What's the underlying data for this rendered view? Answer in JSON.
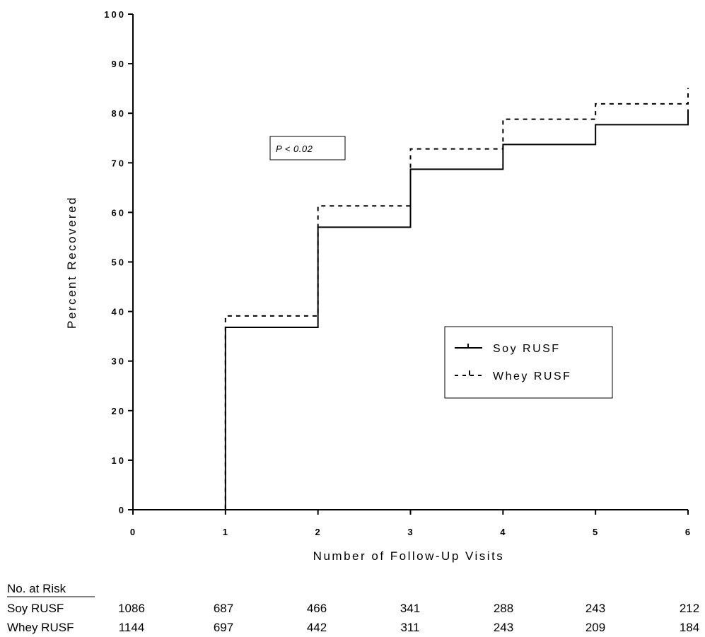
{
  "chart_data": {
    "type": "line",
    "step": true,
    "xlabel": "Number of Follow-Up Visits",
    "ylabel": "Percent Recovered",
    "xlim": [
      0,
      6
    ],
    "ylim": [
      0,
      100
    ],
    "x_ticks": [
      "0",
      "1",
      "2",
      "3",
      "4",
      "5",
      "6"
    ],
    "y_ticks": [
      "0",
      "10",
      "20",
      "30",
      "40",
      "50",
      "60",
      "70",
      "80",
      "90",
      "100"
    ],
    "grid": false,
    "legend_position": "right",
    "annotation": "P < 0.02",
    "series": [
      {
        "name": "Soy RUSF",
        "style": "solid",
        "color": "#000000",
        "x": [
          0,
          1,
          2,
          3,
          4,
          5,
          6
        ],
        "y": [
          0,
          36.8,
          57.0,
          68.7,
          73.7,
          77.7,
          80.8
        ]
      },
      {
        "name": "Whey RUSF",
        "style": "dashed",
        "color": "#000000",
        "x": [
          0,
          1,
          2,
          3,
          4,
          5,
          6
        ],
        "y": [
          0,
          39.1,
          61.3,
          72.8,
          78.8,
          81.9,
          85.1
        ]
      }
    ]
  },
  "risk_table": {
    "title": "No. at Risk",
    "rows": [
      {
        "label": "Soy RUSF",
        "values": [
          "1086",
          "687",
          "466",
          "341",
          "288",
          "243",
          "212"
        ]
      },
      {
        "label": "Whey RUSF",
        "values": [
          "1144",
          "697",
          "442",
          "311",
          "243",
          "209",
          "184"
        ]
      }
    ]
  }
}
